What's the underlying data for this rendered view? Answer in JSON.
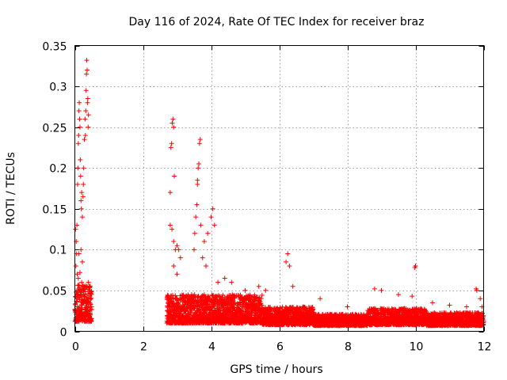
{
  "chart_data": {
    "type": "scatter",
    "title": "Day 116 of 2024, Rate Of TEC Index for receiver braz",
    "xlabel": "GPS time / hours",
    "ylabel": "ROTI / TECUs",
    "xlim": [
      0,
      12
    ],
    "ylim": [
      0,
      0.35
    ],
    "x_ticks": [
      0,
      2,
      4,
      6,
      8,
      10,
      12
    ],
    "x_tick_labels": [
      "0",
      "2",
      "4",
      "6",
      "8",
      "10",
      "12"
    ],
    "y_ticks": [
      0,
      0.05,
      0.1,
      0.15,
      0.2,
      0.25,
      0.3,
      0.35
    ],
    "y_tick_labels": [
      "0",
      "0.05",
      "0.1",
      "0.15",
      "0.2",
      "0.25",
      "0.3",
      "0.35"
    ],
    "grid": true,
    "marker": "plus",
    "color": "#ff0000",
    "data_gap_hours": [
      0.5,
      2.7
    ],
    "points": [
      [
        0.02,
        0.125
      ],
      [
        0.04,
        0.11
      ],
      [
        0.05,
        0.095
      ],
      [
        0.06,
        0.13
      ],
      [
        0.08,
        0.18
      ],
      [
        0.09,
        0.2
      ],
      [
        0.1,
        0.23
      ],
      [
        0.11,
        0.24
      ],
      [
        0.12,
        0.27
      ],
      [
        0.13,
        0.28
      ],
      [
        0.14,
        0.26
      ],
      [
        0.15,
        0.25
      ],
      [
        0.16,
        0.21
      ],
      [
        0.17,
        0.19
      ],
      [
        0.18,
        0.16
      ],
      [
        0.19,
        0.15
      ],
      [
        0.2,
        0.17
      ],
      [
        0.22,
        0.14
      ],
      [
        0.24,
        0.165
      ],
      [
        0.25,
        0.18
      ],
      [
        0.26,
        0.2
      ],
      [
        0.28,
        0.235
      ],
      [
        0.3,
        0.26
      ],
      [
        0.31,
        0.24
      ],
      [
        0.32,
        0.27
      ],
      [
        0.33,
        0.295
      ],
      [
        0.34,
        0.315
      ],
      [
        0.35,
        0.332
      ],
      [
        0.36,
        0.32
      ],
      [
        0.37,
        0.28
      ],
      [
        0.38,
        0.285
      ],
      [
        0.39,
        0.25
      ],
      [
        0.4,
        0.265
      ],
      [
        0.03,
        0.08
      ],
      [
        0.07,
        0.07
      ],
      [
        0.1,
        0.065
      ],
      [
        0.15,
        0.072
      ],
      [
        0.2,
        0.06
      ],
      [
        0.25,
        0.05
      ],
      [
        0.3,
        0.045
      ],
      [
        0.35,
        0.055
      ],
      [
        0.4,
        0.06
      ],
      [
        0.18,
        0.1
      ],
      [
        0.12,
        0.095
      ],
      [
        0.22,
        0.085
      ],
      [
        2.8,
        0.17
      ],
      [
        2.82,
        0.225
      ],
      [
        2.84,
        0.23
      ],
      [
        2.86,
        0.255
      ],
      [
        2.88,
        0.26
      ],
      [
        2.9,
        0.25
      ],
      [
        2.92,
        0.19
      ],
      [
        2.8,
        0.13
      ],
      [
        2.85,
        0.125
      ],
      [
        2.9,
        0.11
      ],
      [
        2.95,
        0.1
      ],
      [
        3.0,
        0.105
      ],
      [
        3.05,
        0.1
      ],
      [
        2.9,
        0.08
      ],
      [
        3.0,
        0.07
      ],
      [
        3.1,
        0.09
      ],
      [
        3.5,
        0.1
      ],
      [
        3.52,
        0.12
      ],
      [
        3.55,
        0.14
      ],
      [
        3.58,
        0.155
      ],
      [
        3.6,
        0.18
      ],
      [
        3.62,
        0.2
      ],
      [
        3.64,
        0.205
      ],
      [
        3.66,
        0.23
      ],
      [
        3.68,
        0.235
      ],
      [
        3.6,
        0.185
      ],
      [
        3.7,
        0.13
      ],
      [
        3.75,
        0.09
      ],
      [
        3.8,
        0.11
      ],
      [
        3.9,
        0.12
      ],
      [
        4.0,
        0.14
      ],
      [
        4.05,
        0.15
      ],
      [
        4.1,
        0.13
      ],
      [
        3.85,
        0.08
      ],
      [
        4.2,
        0.06
      ],
      [
        4.4,
        0.065
      ],
      [
        4.6,
        0.06
      ],
      [
        5.0,
        0.05
      ],
      [
        5.4,
        0.055
      ],
      [
        5.6,
        0.05
      ],
      [
        6.2,
        0.085
      ],
      [
        6.25,
        0.095
      ],
      [
        6.3,
        0.08
      ],
      [
        6.4,
        0.055
      ],
      [
        7.2,
        0.04
      ],
      [
        8.0,
        0.03
      ],
      [
        8.8,
        0.052
      ],
      [
        9.0,
        0.05
      ],
      [
        9.5,
        0.045
      ],
      [
        9.9,
        0.043
      ],
      [
        9.98,
        0.078
      ],
      [
        10.0,
        0.08
      ],
      [
        10.5,
        0.035
      ],
      [
        11.0,
        0.032
      ],
      [
        11.5,
        0.03
      ],
      [
        11.78,
        0.052
      ],
      [
        11.8,
        0.05
      ],
      [
        11.9,
        0.04
      ],
      [
        11.95,
        0.03
      ]
    ]
  }
}
